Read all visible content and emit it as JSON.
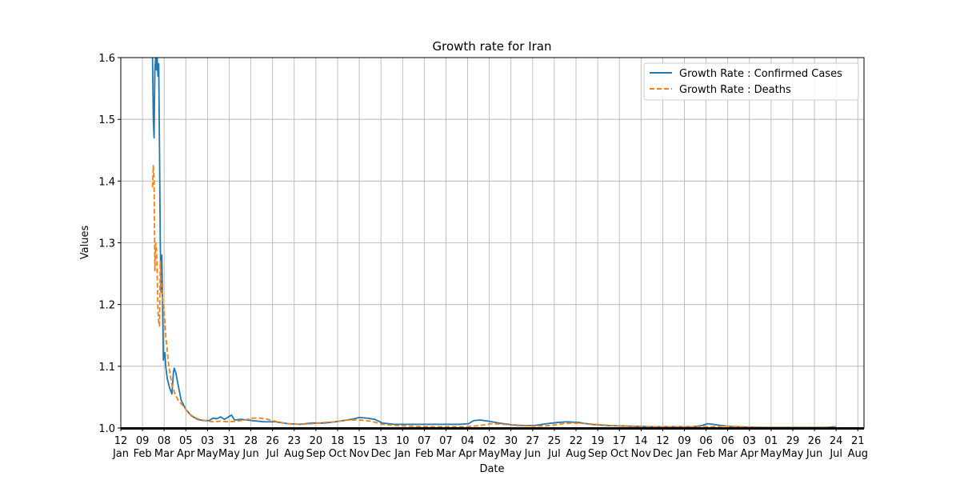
{
  "chart_data": {
    "type": "line",
    "title": "Growth rate for Iran",
    "xlabel": "Date",
    "ylabel": "Values",
    "ylim": [
      1.0,
      1.6
    ],
    "y_ticks": [
      1.0,
      1.1,
      1.2,
      1.3,
      1.4,
      1.5,
      1.6
    ],
    "y_tick_labels": [
      "1.0",
      "1.1",
      "1.2",
      "1.3",
      "1.4",
      "1.5",
      "1.6"
    ],
    "xlim": [
      "2020-01-12",
      "2022-08-29"
    ],
    "grid": true,
    "legend_position": "upper right",
    "x_ticks": [
      {
        "date": "2020-01-12",
        "day": "12",
        "month": "Jan"
      },
      {
        "date": "2020-02-09",
        "day": "09",
        "month": "Feb"
      },
      {
        "date": "2020-03-08",
        "day": "08",
        "month": "Mar"
      },
      {
        "date": "2020-04-05",
        "day": "05",
        "month": "Apr"
      },
      {
        "date": "2020-05-03",
        "day": "03",
        "month": "May"
      },
      {
        "date": "2020-05-31",
        "day": "31",
        "month": "May"
      },
      {
        "date": "2020-06-28",
        "day": "28",
        "month": "Jun"
      },
      {
        "date": "2020-07-26",
        "day": "26",
        "month": "Jul"
      },
      {
        "date": "2020-08-23",
        "day": "23",
        "month": "Aug"
      },
      {
        "date": "2020-09-20",
        "day": "20",
        "month": "Sep"
      },
      {
        "date": "2020-10-18",
        "day": "18",
        "month": "Oct"
      },
      {
        "date": "2020-11-15",
        "day": "15",
        "month": "Nov"
      },
      {
        "date": "2020-12-13",
        "day": "13",
        "month": "Dec"
      },
      {
        "date": "2021-01-10",
        "day": "10",
        "month": "Jan"
      },
      {
        "date": "2021-02-07",
        "day": "07",
        "month": "Feb"
      },
      {
        "date": "2021-03-07",
        "day": "07",
        "month": "Mar"
      },
      {
        "date": "2021-04-04",
        "day": "04",
        "month": "Apr"
      },
      {
        "date": "2021-05-02",
        "day": "02",
        "month": "May"
      },
      {
        "date": "2021-05-30",
        "day": "30",
        "month": "May"
      },
      {
        "date": "2021-06-27",
        "day": "27",
        "month": "Jun"
      },
      {
        "date": "2021-07-25",
        "day": "25",
        "month": "Jul"
      },
      {
        "date": "2021-08-22",
        "day": "22",
        "month": "Aug"
      },
      {
        "date": "2021-09-19",
        "day": "19",
        "month": "Sep"
      },
      {
        "date": "2021-10-17",
        "day": "17",
        "month": "Oct"
      },
      {
        "date": "2021-11-14",
        "day": "14",
        "month": "Nov"
      },
      {
        "date": "2021-12-12",
        "day": "12",
        "month": "Dec"
      },
      {
        "date": "2022-01-09",
        "day": "09",
        "month": "Jan"
      },
      {
        "date": "2022-02-06",
        "day": "06",
        "month": "Feb"
      },
      {
        "date": "2022-03-06",
        "day": "06",
        "month": "Mar"
      },
      {
        "date": "2022-04-03",
        "day": "03",
        "month": "Apr"
      },
      {
        "date": "2022-05-01",
        "day": "01",
        "month": "May"
      },
      {
        "date": "2022-05-29",
        "day": "29",
        "month": "May"
      },
      {
        "date": "2022-06-26",
        "day": "26",
        "month": "Jun"
      },
      {
        "date": "2022-07-24",
        "day": "24",
        "month": "Jul"
      },
      {
        "date": "2022-08-21",
        "day": "21",
        "month": "Aug"
      }
    ],
    "series": [
      {
        "name": "Growth Rate : Confirmed Cases",
        "color": "#1f77b4",
        "dash": "solid",
        "points": [
          [
            "2020-02-22",
            1.6
          ],
          [
            "2020-02-23",
            1.5
          ],
          [
            "2020-02-24",
            1.47
          ],
          [
            "2020-02-25",
            1.58
          ],
          [
            "2020-02-26",
            1.6
          ],
          [
            "2020-02-27",
            1.58
          ],
          [
            "2020-02-28",
            1.6
          ],
          [
            "2020-02-29",
            1.57
          ],
          [
            "2020-03-01",
            1.59
          ],
          [
            "2020-03-02",
            1.45
          ],
          [
            "2020-03-03",
            1.3
          ],
          [
            "2020-03-04",
            1.22
          ],
          [
            "2020-03-05",
            1.28
          ],
          [
            "2020-03-06",
            1.2
          ],
          [
            "2020-03-07",
            1.11
          ],
          [
            "2020-03-08",
            1.12
          ],
          [
            "2020-03-09",
            1.122
          ],
          [
            "2020-03-10",
            1.1
          ],
          [
            "2020-03-12",
            1.08
          ],
          [
            "2020-03-15",
            1.065
          ],
          [
            "2020-03-18",
            1.055
          ],
          [
            "2020-03-20",
            1.09
          ],
          [
            "2020-03-21",
            1.097
          ],
          [
            "2020-03-23",
            1.09
          ],
          [
            "2020-03-26",
            1.07
          ],
          [
            "2020-03-30",
            1.045
          ],
          [
            "2020-04-05",
            1.03
          ],
          [
            "2020-04-12",
            1.02
          ],
          [
            "2020-04-20",
            1.014
          ],
          [
            "2020-04-28",
            1.012
          ],
          [
            "2020-05-05",
            1.012
          ],
          [
            "2020-05-10",
            1.016
          ],
          [
            "2020-05-15",
            1.015
          ],
          [
            "2020-05-20",
            1.018
          ],
          [
            "2020-05-25",
            1.014
          ],
          [
            "2020-05-30",
            1.018
          ],
          [
            "2020-06-03",
            1.021
          ],
          [
            "2020-06-07",
            1.013
          ],
          [
            "2020-06-15",
            1.014
          ],
          [
            "2020-06-30",
            1.012
          ],
          [
            "2020-07-15",
            1.01
          ],
          [
            "2020-07-30",
            1.01
          ],
          [
            "2020-08-15",
            1.007
          ],
          [
            "2020-08-30",
            1.006
          ],
          [
            "2020-09-15",
            1.008
          ],
          [
            "2020-10-01",
            1.008
          ],
          [
            "2020-10-15",
            1.01
          ],
          [
            "2020-10-25",
            1.012
          ],
          [
            "2020-11-05",
            1.014
          ],
          [
            "2020-11-15",
            1.017
          ],
          [
            "2020-11-25",
            1.016
          ],
          [
            "2020-12-05",
            1.014
          ],
          [
            "2020-12-15",
            1.008
          ],
          [
            "2020-12-30",
            1.006
          ],
          [
            "2021-01-20",
            1.006
          ],
          [
            "2021-02-15",
            1.006
          ],
          [
            "2021-03-10",
            1.006
          ],
          [
            "2021-03-25",
            1.006
          ],
          [
            "2021-04-05",
            1.007
          ],
          [
            "2021-04-12",
            1.012
          ],
          [
            "2021-04-20",
            1.013
          ],
          [
            "2021-05-01",
            1.011
          ],
          [
            "2021-05-15",
            1.008
          ],
          [
            "2021-06-01",
            1.005
          ],
          [
            "2021-06-15",
            1.004
          ],
          [
            "2021-06-30",
            1.004
          ],
          [
            "2021-07-15",
            1.007
          ],
          [
            "2021-07-30",
            1.009
          ],
          [
            "2021-08-10",
            1.01
          ],
          [
            "2021-08-25",
            1.009
          ],
          [
            "2021-09-10",
            1.006
          ],
          [
            "2021-09-30",
            1.004
          ],
          [
            "2021-10-30",
            1.003
          ],
          [
            "2021-11-30",
            1.002
          ],
          [
            "2021-12-30",
            1.002
          ],
          [
            "2022-01-20",
            1.002
          ],
          [
            "2022-02-01",
            1.004
          ],
          [
            "2022-02-08",
            1.007
          ],
          [
            "2022-02-15",
            1.006
          ],
          [
            "2022-02-25",
            1.004
          ],
          [
            "2022-03-15",
            1.002
          ],
          [
            "2022-04-15",
            1.001
          ],
          [
            "2022-05-15",
            1.001
          ],
          [
            "2022-06-15",
            1.001
          ],
          [
            "2022-07-10",
            1.001
          ],
          [
            "2022-07-24",
            1.002
          ]
        ]
      },
      {
        "name": "Growth Rate : Deaths",
        "color": "#ff7f0e",
        "dash": "dashed",
        "points": [
          [
            "2020-02-22",
            1.39
          ],
          [
            "2020-02-23",
            1.425
          ],
          [
            "2020-02-24",
            1.4
          ],
          [
            "2020-02-25",
            1.255
          ],
          [
            "2020-02-26",
            1.3
          ],
          [
            "2020-02-27",
            1.29
          ],
          [
            "2020-02-28",
            1.25
          ],
          [
            "2020-02-29",
            1.19
          ],
          [
            "2020-03-01",
            1.17
          ],
          [
            "2020-03-02",
            1.165
          ],
          [
            "2020-03-03",
            1.27
          ],
          [
            "2020-03-04",
            1.24
          ],
          [
            "2020-03-06",
            1.21
          ],
          [
            "2020-03-08",
            1.19
          ],
          [
            "2020-03-10",
            1.15
          ],
          [
            "2020-03-14",
            1.1
          ],
          [
            "2020-03-18",
            1.07
          ],
          [
            "2020-03-22",
            1.055
          ],
          [
            "2020-03-26",
            1.045
          ],
          [
            "2020-04-02",
            1.035
          ],
          [
            "2020-04-10",
            1.022
          ],
          [
            "2020-04-20",
            1.015
          ],
          [
            "2020-04-30",
            1.012
          ],
          [
            "2020-05-10",
            1.01
          ],
          [
            "2020-05-20",
            1.011
          ],
          [
            "2020-05-30",
            1.01
          ],
          [
            "2020-06-10",
            1.011
          ],
          [
            "2020-06-20",
            1.013
          ],
          [
            "2020-07-01",
            1.016
          ],
          [
            "2020-07-10",
            1.016
          ],
          [
            "2020-07-20",
            1.014
          ],
          [
            "2020-08-01",
            1.01
          ],
          [
            "2020-08-15",
            1.007
          ],
          [
            "2020-09-01",
            1.006
          ],
          [
            "2020-09-15",
            1.007
          ],
          [
            "2020-10-01",
            1.009
          ],
          [
            "2020-10-15",
            1.01
          ],
          [
            "2020-11-01",
            1.013
          ],
          [
            "2020-11-15",
            1.013
          ],
          [
            "2020-11-30",
            1.011
          ],
          [
            "2020-12-15",
            1.006
          ],
          [
            "2021-01-01",
            1.004
          ],
          [
            "2021-01-20",
            1.003
          ],
          [
            "2021-02-15",
            1.002
          ],
          [
            "2021-03-15",
            1.002
          ],
          [
            "2021-04-01",
            1.002
          ],
          [
            "2021-04-20",
            1.004
          ],
          [
            "2021-05-05",
            1.007
          ],
          [
            "2021-05-20",
            1.006
          ],
          [
            "2021-06-05",
            1.004
          ],
          [
            "2021-06-30",
            1.003
          ],
          [
            "2021-07-20",
            1.004
          ],
          [
            "2021-08-05",
            1.007
          ],
          [
            "2021-08-20",
            1.008
          ],
          [
            "2021-09-05",
            1.007
          ],
          [
            "2021-09-25",
            1.005
          ],
          [
            "2021-10-20",
            1.003
          ],
          [
            "2021-11-20",
            1.002
          ],
          [
            "2021-12-20",
            1.002
          ],
          [
            "2022-01-20",
            1.002
          ],
          [
            "2022-02-10",
            1.002
          ],
          [
            "2022-03-05",
            1.003
          ],
          [
            "2022-03-25",
            1.002
          ],
          [
            "2022-04-25",
            1.001
          ],
          [
            "2022-05-25",
            1.001
          ],
          [
            "2022-06-25",
            1.001
          ],
          [
            "2022-07-24",
            1.001
          ]
        ]
      }
    ]
  }
}
